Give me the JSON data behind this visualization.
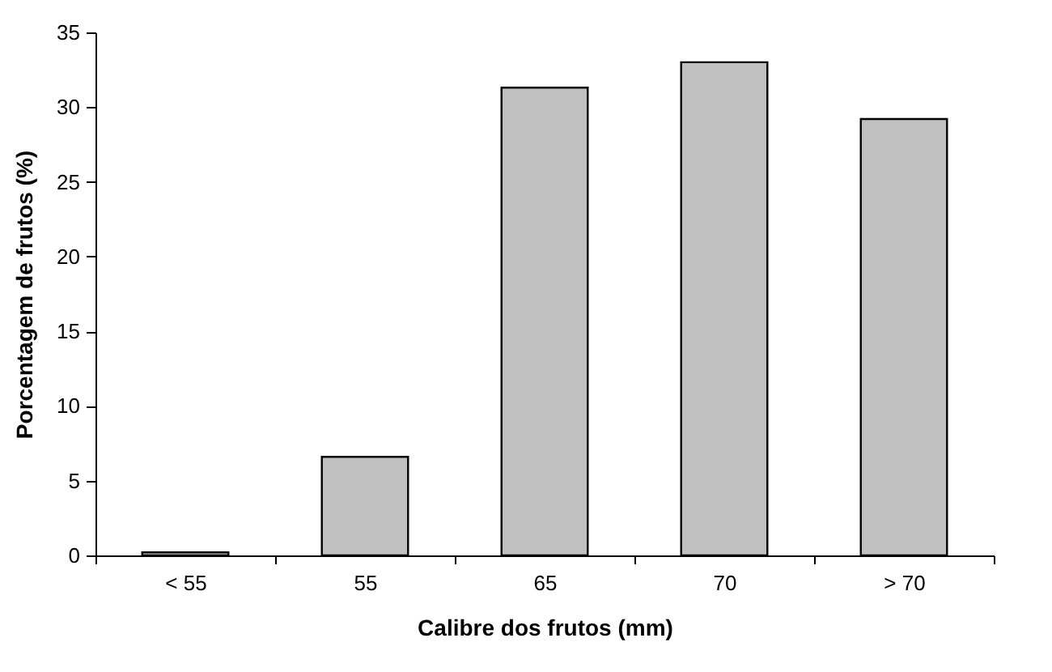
{
  "chart_data": {
    "type": "bar",
    "xlabel": "Calibre dos frutos (mm)",
    "ylabel": "Porcentagem de frutos (%)",
    "categories": [
      "< 55",
      "55",
      "65",
      "70",
      "> 70"
    ],
    "values": [
      0.2,
      6.6,
      31.3,
      33.0,
      29.2
    ],
    "color": "#c0c0c0",
    "ylim": [
      0,
      35
    ],
    "yticks": [
      0,
      5,
      10,
      15,
      20,
      25,
      30,
      35
    ],
    "grid": false
  }
}
